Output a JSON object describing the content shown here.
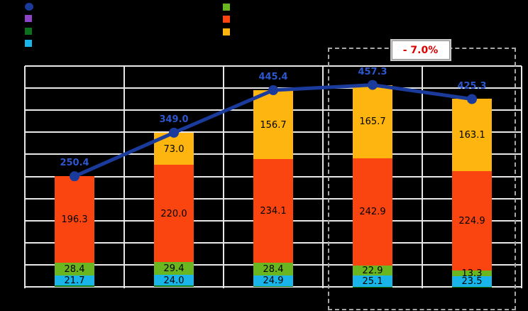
{
  "colors": {
    "background": "#000000",
    "grid": "#E7E7E7",
    "dashed_box": "#A8A8A8",
    "callout_text": "#DC0000",
    "callout_bg": "#FFFFFF"
  },
  "legend": {
    "left": [
      {
        "name": "line-total",
        "shape": "circle",
        "color": "#1A3B9B"
      },
      {
        "name": "purple-series",
        "shape": "square",
        "color": "#8E44C8"
      },
      {
        "name": "dark-green-series",
        "shape": "square",
        "color": "#0D701D"
      },
      {
        "name": "cyan-series",
        "shape": "square",
        "color": "#19B5EA"
      }
    ],
    "right": [
      {
        "name": "green-series",
        "shape": "square",
        "color": "#69B620"
      },
      {
        "name": "red-series",
        "shape": "square",
        "color": "#FB4510"
      },
      {
        "name": "amber-series",
        "shape": "square",
        "color": "#FEB50F"
      }
    ]
  },
  "annotation": {
    "label": "- 7.0%"
  },
  "chart_data": {
    "type": "bar",
    "subtype": "stacked-bars-with-total-line",
    "categories": [
      "",
      "",
      "",
      "",
      ""
    ],
    "stack_series": [
      {
        "name": "other-dark-green",
        "color": "#107C14",
        "labeled": false,
        "values": [
          4.0,
          2.6,
          1.3,
          0.7,
          0.5
        ]
      },
      {
        "name": "cyan",
        "color": "#19B5EA",
        "labeled": true,
        "values": [
          21.7,
          24.0,
          24.9,
          25.1,
          23.5
        ]
      },
      {
        "name": "green",
        "color": "#69B620",
        "labeled": true,
        "values": [
          28.4,
          29.4,
          28.4,
          22.9,
          13.3
        ]
      },
      {
        "name": "orange-red",
        "color": "#FB4510",
        "labeled": true,
        "values": [
          196.3,
          220.0,
          234.1,
          242.9,
          224.9
        ]
      },
      {
        "name": "amber",
        "color": "#FEB50F",
        "labeled": true,
        "values": [
          0,
          73.0,
          156.7,
          165.7,
          163.1
        ]
      }
    ],
    "line_series": {
      "name": "total",
      "color": "#1A3B9B",
      "label_color": "#2C57CE",
      "values": [
        250.4,
        349.0,
        445.4,
        457.3,
        425.3
      ]
    },
    "ylim": [
      0,
      500
    ],
    "grid_step": 50,
    "grid": true,
    "legend_position": "top",
    "highlight": {
      "bar_indexes": [
        3,
        4
      ],
      "label": "- 7.0%"
    }
  }
}
